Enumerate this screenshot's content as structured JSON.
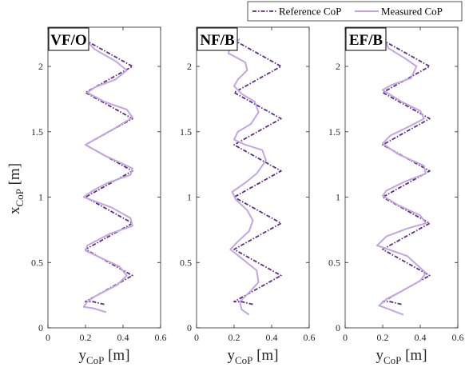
{
  "colors": {
    "reference": "#5b2a86",
    "measured": "#c3a6e0",
    "axis": "#262626"
  },
  "legend": {
    "reference_label": "Reference CoP",
    "measured_label": "Measured CoP"
  },
  "axes": {
    "ylabel_main": "x",
    "ylabel_sub": "CoP",
    "ylabel_unit": " [m]",
    "xlabel_main": "y",
    "xlabel_sub": "CoP",
    "xlabel_unit": " [m]"
  },
  "chart_data": [
    {
      "type": "line",
      "title": "VF/O",
      "xlim": [
        0,
        0.6
      ],
      "ylim": [
        0,
        2.3
      ],
      "xticks": [
        0,
        0.2,
        0.4,
        0.6
      ],
      "yticks": [
        0,
        0.5,
        1,
        1.5,
        2
      ],
      "series": [
        {
          "name": "Reference CoP",
          "x": [
            0.3,
            0.24,
            0.2,
            0.45,
            0.2,
            0.45,
            0.2,
            0.45,
            0.2,
            0.45,
            0.2,
            0.45,
            0.2
          ],
          "y": [
            0.18,
            0.2,
            0.2,
            0.4,
            0.6,
            0.8,
            1.0,
            1.2,
            1.4,
            1.6,
            1.8,
            2.0,
            2.2
          ]
        },
        {
          "name": "Measured CoP",
          "x": [
            0.31,
            0.24,
            0.19,
            0.21,
            0.25,
            0.37,
            0.42,
            0.38,
            0.2,
            0.21,
            0.33,
            0.45,
            0.44,
            0.34,
            0.19,
            0.24,
            0.32,
            0.44,
            0.45,
            0.3,
            0.2,
            0.26,
            0.36,
            0.45,
            0.42,
            0.3,
            0.21,
            0.25,
            0.36,
            0.42,
            0.36,
            0.25,
            0.21
          ],
          "y": [
            0.12,
            0.15,
            0.16,
            0.2,
            0.24,
            0.33,
            0.4,
            0.47,
            0.59,
            0.63,
            0.72,
            0.78,
            0.84,
            0.92,
            1.0,
            1.05,
            1.11,
            1.17,
            1.22,
            1.32,
            1.4,
            1.45,
            1.53,
            1.61,
            1.67,
            1.73,
            1.8,
            1.84,
            1.9,
            1.97,
            2.04,
            2.13,
            2.19
          ]
        }
      ]
    },
    {
      "type": "line",
      "title": "NF/B",
      "xlim": [
        0,
        0.6
      ],
      "ylim": [
        0,
        2.3
      ],
      "xticks": [
        0,
        0.2,
        0.4,
        0.6
      ],
      "yticks": [
        0,
        0.5,
        1,
        1.5,
        2
      ],
      "series": [
        {
          "name": "Reference CoP",
          "x": [
            0.3,
            0.24,
            0.2,
            0.45,
            0.2,
            0.45,
            0.2,
            0.45,
            0.2,
            0.45,
            0.2,
            0.45,
            0.2
          ],
          "y": [
            0.18,
            0.2,
            0.2,
            0.4,
            0.6,
            0.8,
            1.0,
            1.2,
            1.4,
            1.6,
            1.8,
            2.0,
            2.2
          ]
        },
        {
          "name": "Measured CoP",
          "x": [
            0.28,
            0.24,
            0.23,
            0.28,
            0.33,
            0.32,
            0.25,
            0.18,
            0.22,
            0.28,
            0.3,
            0.27,
            0.21,
            0.19,
            0.26,
            0.32,
            0.37,
            0.35,
            0.26,
            0.2,
            0.22,
            0.29,
            0.33,
            0.31,
            0.24,
            0.2,
            0.22,
            0.27,
            0.26,
            0.21,
            0.17,
            0.18,
            0.23
          ],
          "y": [
            0.1,
            0.14,
            0.2,
            0.27,
            0.35,
            0.44,
            0.52,
            0.6,
            0.66,
            0.74,
            0.82,
            0.9,
            0.98,
            1.04,
            1.11,
            1.18,
            1.28,
            1.36,
            1.4,
            1.44,
            1.5,
            1.56,
            1.65,
            1.73,
            1.79,
            1.85,
            1.9,
            1.97,
            2.03,
            2.07,
            2.1,
            2.16,
            2.21
          ]
        }
      ]
    },
    {
      "type": "line",
      "title": "EF/B",
      "xlim": [
        0,
        0.6
      ],
      "ylim": [
        0,
        2.3
      ],
      "xticks": [
        0,
        0.2,
        0.4,
        0.6
      ],
      "yticks": [
        0,
        0.5,
        1,
        1.5,
        2
      ],
      "series": [
        {
          "name": "Reference CoP",
          "x": [
            0.3,
            0.24,
            0.2,
            0.45,
            0.2,
            0.45,
            0.2,
            0.45,
            0.2,
            0.45,
            0.2,
            0.45,
            0.2
          ],
          "y": [
            0.18,
            0.2,
            0.2,
            0.4,
            0.6,
            0.8,
            1.0,
            1.2,
            1.4,
            1.6,
            1.8,
            2.0,
            2.2
          ]
        },
        {
          "name": "Measured CoP",
          "x": [
            0.31,
            0.22,
            0.18,
            0.22,
            0.3,
            0.4,
            0.43,
            0.33,
            0.17,
            0.22,
            0.33,
            0.43,
            0.4,
            0.28,
            0.2,
            0.22,
            0.32,
            0.43,
            0.42,
            0.28,
            0.2,
            0.24,
            0.34,
            0.42,
            0.4,
            0.3,
            0.2,
            0.25,
            0.35,
            0.38,
            0.32,
            0.23,
            0.21
          ],
          "y": [
            0.1,
            0.15,
            0.17,
            0.22,
            0.28,
            0.36,
            0.42,
            0.55,
            0.63,
            0.7,
            0.76,
            0.8,
            0.86,
            0.94,
            1.01,
            1.05,
            1.12,
            1.18,
            1.24,
            1.33,
            1.41,
            1.47,
            1.54,
            1.6,
            1.66,
            1.73,
            1.82,
            1.86,
            1.91,
            2.0,
            2.06,
            2.14,
            2.21
          ]
        }
      ]
    }
  ]
}
